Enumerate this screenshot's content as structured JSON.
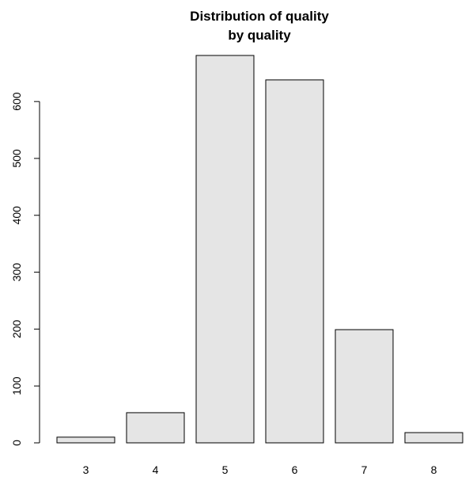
{
  "chart_data": {
    "type": "bar",
    "title": "Distribution of quality",
    "subtitle": "by quality",
    "xlabel": "",
    "ylabel": "",
    "categories": [
      "3",
      "4",
      "5",
      "6",
      "7",
      "8"
    ],
    "values": [
      10,
      53,
      681,
      638,
      199,
      18
    ],
    "ylim": [
      0,
      681
    ],
    "yticks": [
      "0",
      "100",
      "200",
      "300",
      "400",
      "500",
      "600"
    ],
    "grid": false,
    "legend": "none",
    "colors": {
      "bar_fill": "#e5e5e5",
      "bar_stroke": "#000000",
      "axis": "#000000"
    }
  }
}
